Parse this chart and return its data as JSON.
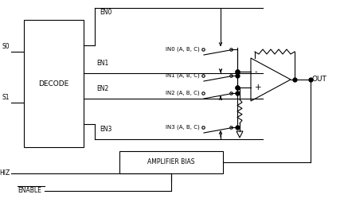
{
  "bg_color": "#ffffff",
  "line_color": "#000000",
  "decode_label": "DECODE",
  "amp_bias_label": "AMPLIFIER BIAS",
  "s0_label": "S0",
  "s1_label": "S1",
  "hiz_label": "HIZ",
  "enable_label": "ENABLE",
  "out_label": "OUT",
  "en_labels": [
    "EN0",
    "EN1",
    "EN2",
    "EN3"
  ],
  "in_labels": [
    "IN0 (A, B, C)",
    "IN1 (A, B, C)",
    "IN2 (A, B, C)",
    "IN3 (A, B, C)"
  ],
  "figsize": [
    4.32,
    2.64
  ],
  "dpi": 100
}
